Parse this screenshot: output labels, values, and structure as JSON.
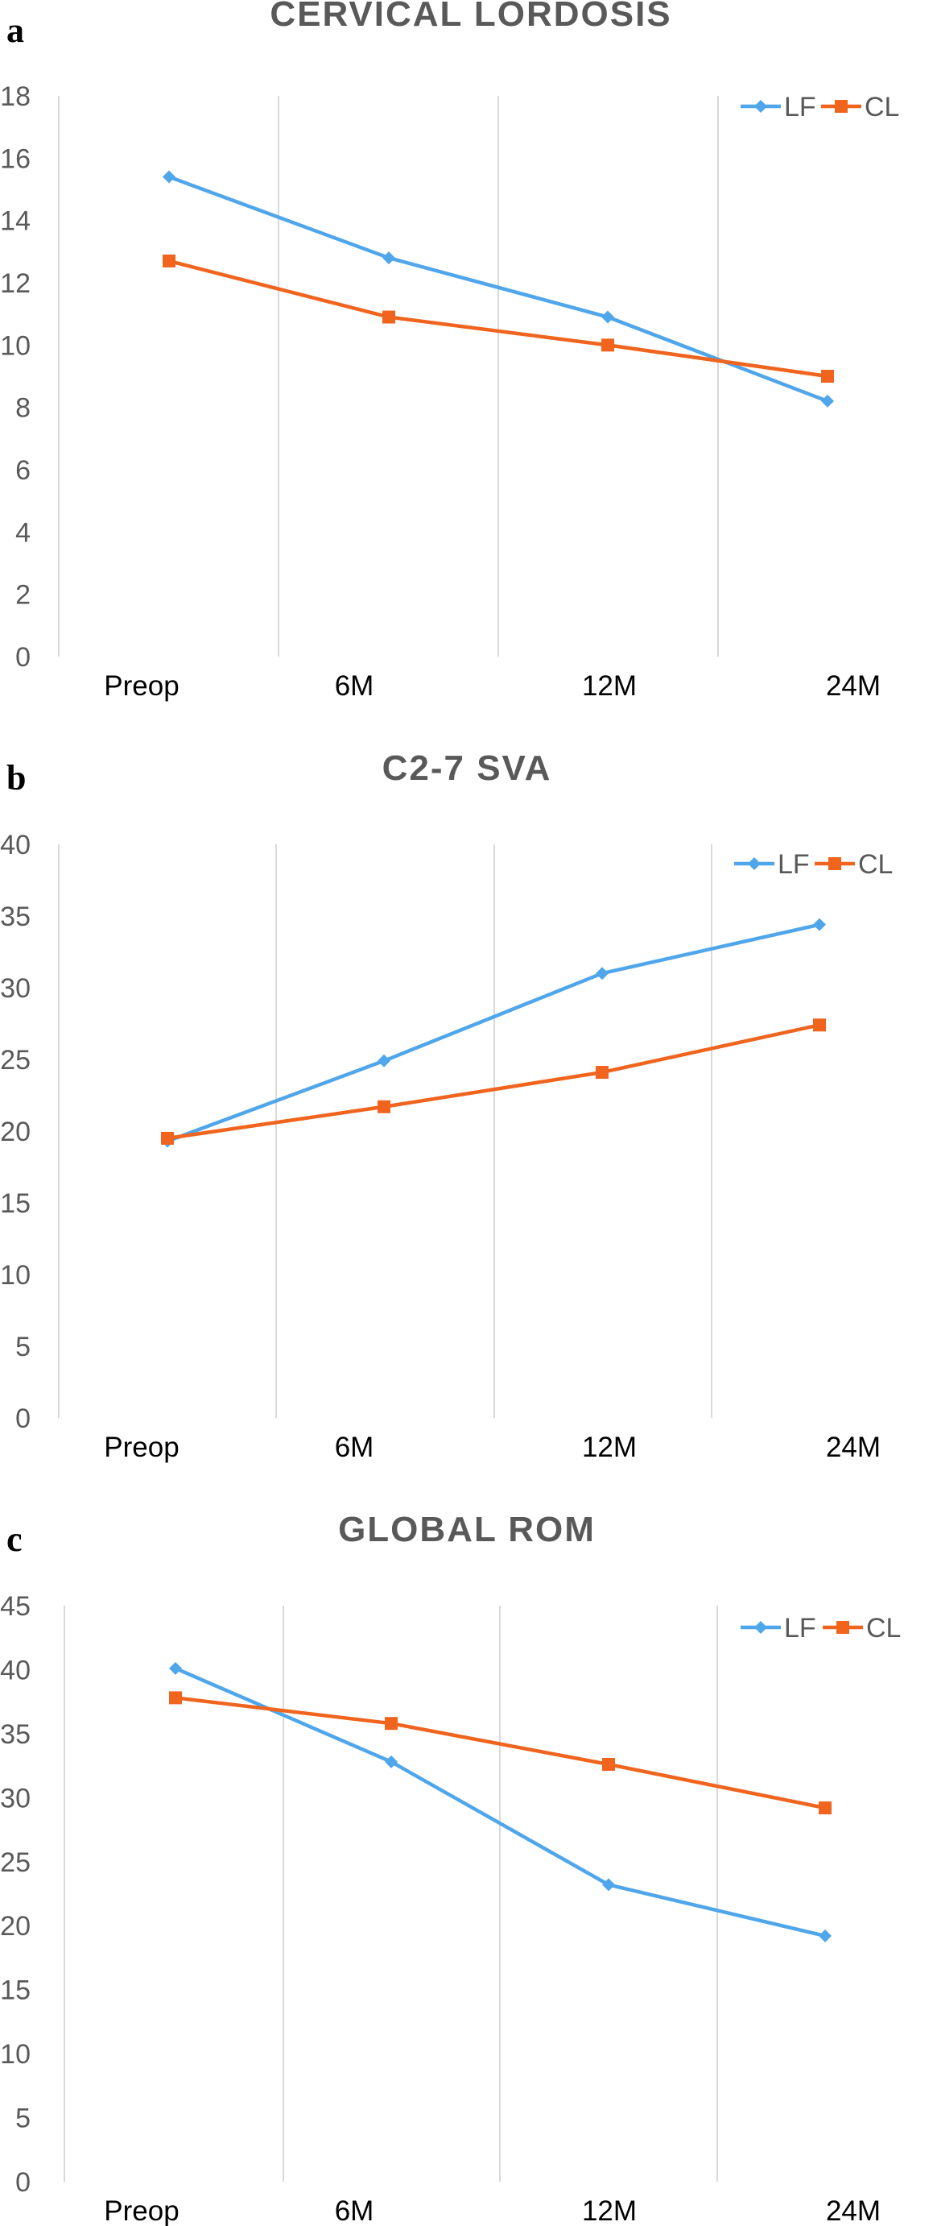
{
  "colors": {
    "LF": "#4fa6eb",
    "CL": "#f0641e",
    "grid": "#d9d9d9",
    "axis": "#595959"
  },
  "chart_data": [
    {
      "panel": "a",
      "type": "line",
      "title": "CERVICAL LORDOSIS",
      "categories": [
        "Preop",
        "6M",
        "12M",
        "24M"
      ],
      "yticks": [
        "0",
        "2",
        "4",
        "6",
        "8",
        "10",
        "12",
        "14",
        "16",
        "18"
      ],
      "ylim": [
        0,
        18
      ],
      "grid": "vertical",
      "legend": "top-right",
      "series": [
        {
          "name": "LF",
          "marker": "diamond",
          "values": [
            15.4,
            12.8,
            10.9,
            8.2
          ]
        },
        {
          "name": "CL",
          "marker": "square",
          "values": [
            12.7,
            10.9,
            10.0,
            9.0
          ]
        }
      ]
    },
    {
      "panel": "b",
      "type": "line",
      "title": "C2-7 SVA",
      "categories": [
        "Preop",
        "6M",
        "12M",
        "24M"
      ],
      "yticks": [
        "0",
        "5",
        "10",
        "15",
        "20",
        "25",
        "30",
        "35",
        "40"
      ],
      "ylim": [
        0,
        40
      ],
      "grid": "vertical",
      "legend": "top-right",
      "series": [
        {
          "name": "LF",
          "marker": "diamond",
          "values": [
            19.3,
            24.9,
            31.0,
            34.4
          ]
        },
        {
          "name": "CL",
          "marker": "square",
          "values": [
            19.5,
            21.7,
            24.1,
            27.4
          ]
        }
      ]
    },
    {
      "panel": "c",
      "type": "line",
      "title": "GLOBAL ROM",
      "categories": [
        "Preop",
        "6M",
        "12M",
        "24M"
      ],
      "yticks": [
        "0",
        "5",
        "10",
        "15",
        "20",
        "25",
        "30",
        "35",
        "40",
        "45"
      ],
      "ylim": [
        0,
        45
      ],
      "grid": "vertical",
      "legend": "top-right",
      "series": [
        {
          "name": "LF",
          "marker": "diamond",
          "values": [
            40.1,
            32.8,
            23.2,
            19.2
          ]
        },
        {
          "name": "CL",
          "marker": "square",
          "values": [
            37.8,
            35.8,
            32.6,
            29.2
          ]
        }
      ]
    }
  ]
}
